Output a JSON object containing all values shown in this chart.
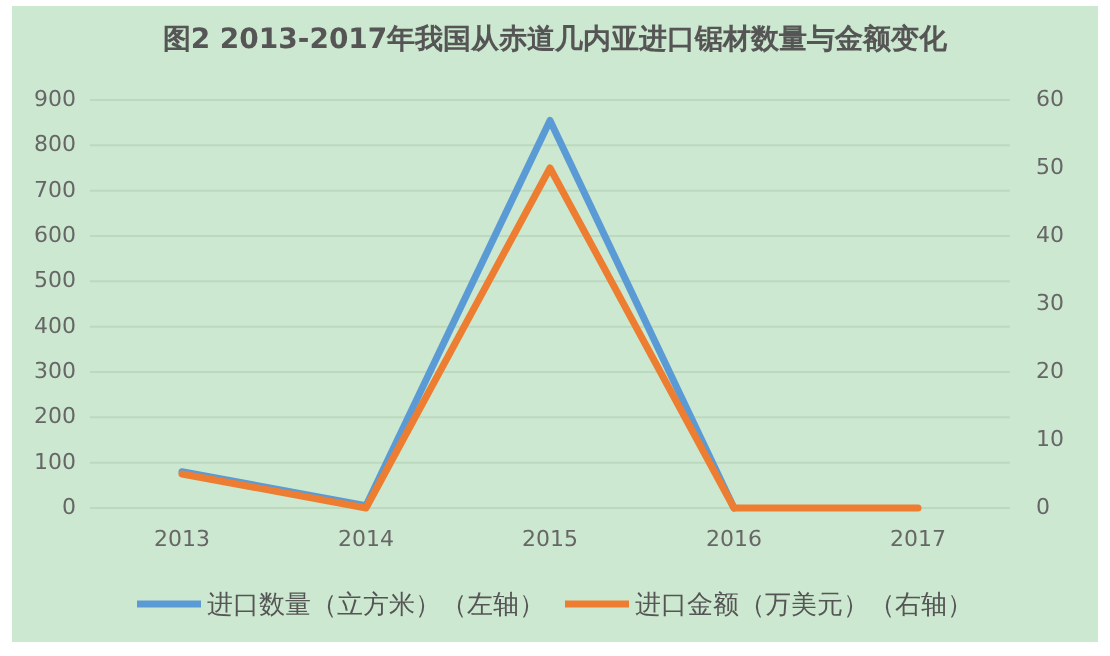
{
  "chart_data": {
    "type": "line",
    "title": "图2 2013-2017年我国从赤道几内亚进口锯材数量与金额变化",
    "categories": [
      "2013",
      "2014",
      "2015",
      "2016",
      "2017"
    ],
    "series": [
      {
        "name": "进口数量（立方米）（左轴）",
        "color": "#5b9bd5",
        "values": [
          80,
          5,
          855,
          0,
          null
        ]
      },
      {
        "name": "进口金额（万美元）（右轴）",
        "color": "#ed7d31",
        "values": [
          5,
          0,
          50,
          0,
          0
        ],
        "axis": "y2"
      }
    ],
    "ylim": [
      0,
      900
    ],
    "yticks": [
      0,
      100,
      200,
      300,
      400,
      500,
      600,
      700,
      800,
      900
    ],
    "y2lim": [
      0,
      60
    ],
    "y2ticks": [
      0,
      10,
      20,
      30,
      40,
      50,
      60
    ],
    "grid": "y",
    "legend": "bottom",
    "marker": "none",
    "line_style": "solid"
  }
}
